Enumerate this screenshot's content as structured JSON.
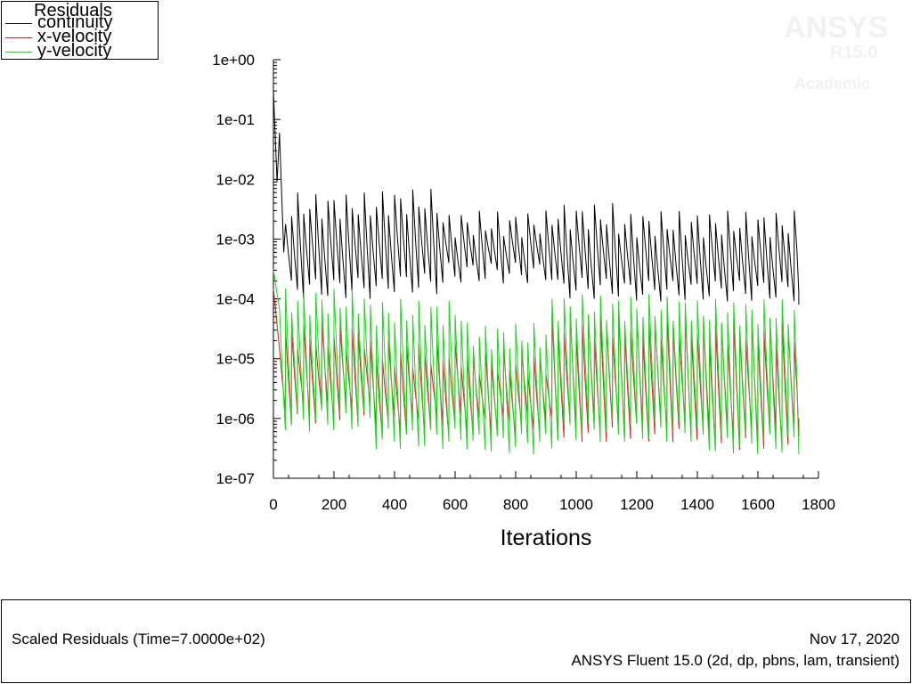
{
  "window": {
    "title": "Scaled Residuals"
  },
  "legend": {
    "title": "Residuals",
    "items": [
      {
        "label": "continuity",
        "color": "#000000"
      },
      {
        "label": "x-velocity",
        "color": "#d21e1e"
      },
      {
        "label": "y-velocity",
        "color": "#1ed21e"
      }
    ]
  },
  "watermark": {
    "brand": "ANSYS",
    "version": "R15.0",
    "edition": "Academic"
  },
  "footer": {
    "plot_name": "Scaled Residuals  (Time=7.0000e+02)",
    "date": "Nov 17, 2020",
    "software": "ANSYS Fluent 15.0 (2d, dp, pbns, lam, transient)"
  },
  "chart_data": {
    "type": "line",
    "title": "",
    "xlabel": "Iterations",
    "ylabel": "",
    "x_scale": "linear",
    "y_scale": "log",
    "xlim": [
      0,
      1800
    ],
    "ylim": [
      1e-07,
      1
    ],
    "x_ticks": [
      0,
      200,
      400,
      600,
      800,
      1000,
      1200,
      1400,
      1600,
      1800
    ],
    "x_tick_labels": [
      "0",
      "200",
      "400",
      "600",
      "800",
      "1000",
      "1200",
      "1400",
      "1600",
      "1800"
    ],
    "y_ticks": [
      1,
      0.1,
      0.01,
      0.001,
      0.0001,
      1e-05,
      1e-06,
      1e-07
    ],
    "y_tick_labels": [
      "1e+00",
      "1e-01",
      "1e-02",
      "1e-03",
      "1e-04",
      "1e-05",
      "1e-06",
      "1e-07"
    ],
    "grid": false,
    "legend_position": "top-left",
    "time_step_iterations": 20,
    "last_iteration": 1735,
    "series": [
      {
        "name": "continuity",
        "color": "#000000",
        "start": 0.3,
        "first_peak": 0.06,
        "segments": [
          {
            "from": 60,
            "to": 360,
            "peak": 0.006,
            "low": 0.0001
          },
          {
            "from": 360,
            "to": 560,
            "peak": 0.007,
            "low": 0.00012
          },
          {
            "from": 560,
            "to": 920,
            "peak": 0.003,
            "low": 0.00018
          },
          {
            "from": 920,
            "to": 1140,
            "peak": 0.004,
            "low": 0.0001
          },
          {
            "from": 1140,
            "to": 1735,
            "peak": 0.003,
            "low": 9e-05
          }
        ],
        "end": 8e-05
      },
      {
        "name": "x-velocity",
        "color": "#d21e1e",
        "start": 0.00015,
        "segments": [
          {
            "from": 20,
            "to": 320,
            "peak": 4e-05,
            "low": 8e-07
          },
          {
            "from": 320,
            "to": 640,
            "peak": 2e-05,
            "low": 5e-07
          },
          {
            "from": 640,
            "to": 920,
            "peak": 1.5e-05,
            "low": 5e-07
          },
          {
            "from": 920,
            "to": 1400,
            "peak": 6e-05,
            "low": 4e-07
          },
          {
            "from": 1400,
            "to": 1735,
            "peak": 5e-05,
            "low": 3e-07
          }
        ],
        "end": 1e-06
      },
      {
        "name": "y-velocity",
        "color": "#1ed21e",
        "start": 0.0003,
        "segments": [
          {
            "from": 20,
            "to": 320,
            "peak": 0.00015,
            "low": 6e-07
          },
          {
            "from": 320,
            "to": 640,
            "peak": 0.0001,
            "low": 3e-07
          },
          {
            "from": 640,
            "to": 920,
            "peak": 4e-05,
            "low": 2.5e-07
          },
          {
            "from": 920,
            "to": 1400,
            "peak": 0.00012,
            "low": 4e-07
          },
          {
            "from": 1400,
            "to": 1735,
            "peak": 0.0001,
            "low": 2.5e-07
          }
        ],
        "end": 2.5e-07
      }
    ]
  }
}
